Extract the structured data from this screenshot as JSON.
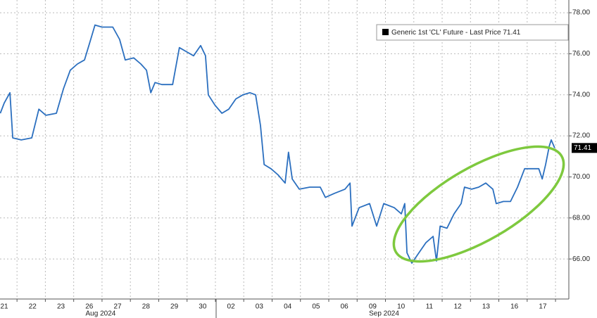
{
  "chart_data": {
    "type": "line",
    "legend_label": "Generic 1st 'CL' Future - Last Price",
    "last_price": 71.41,
    "x_group_labels": [
      "Aug 2024",
      "Sep 2024"
    ],
    "xlim": [
      -0.15,
      19.92
    ],
    "ylim": [
      64.05,
      78.62
    ],
    "xticks": [
      {
        "value": 0,
        "label": "21"
      },
      {
        "value": 1,
        "label": "22"
      },
      {
        "value": 2,
        "label": "23"
      },
      {
        "value": 3,
        "label": "26"
      },
      {
        "value": 4,
        "label": "27"
      },
      {
        "value": 5,
        "label": "28"
      },
      {
        "value": 6,
        "label": "29"
      },
      {
        "value": 7,
        "label": "30"
      },
      {
        "value": 8,
        "label": "02"
      },
      {
        "value": 9,
        "label": "03"
      },
      {
        "value": 10,
        "label": "04"
      },
      {
        "value": 11,
        "label": "05"
      },
      {
        "value": 12,
        "label": "06"
      },
      {
        "value": 13,
        "label": "09"
      },
      {
        "value": 14,
        "label": "10"
      },
      {
        "value": 15,
        "label": "11"
      },
      {
        "value": 16,
        "label": "12"
      },
      {
        "value": 17,
        "label": "13"
      },
      {
        "value": 18,
        "label": "16"
      },
      {
        "value": 19,
        "label": "17"
      }
    ],
    "yticks": [
      {
        "value": 66,
        "label": "66.00"
      },
      {
        "value": 68,
        "label": "68.00"
      },
      {
        "value": 70,
        "label": "70.00"
      },
      {
        "value": 72,
        "label": "72.00"
      },
      {
        "value": 74,
        "label": "74.00"
      },
      {
        "value": 76,
        "label": "76.00"
      },
      {
        "value": 78,
        "label": "78.00"
      }
    ],
    "grid": true,
    "x": [
      -0.14,
      0,
      0.2,
      0.3,
      0.6,
      0.97,
      1.22,
      1.47,
      1.84,
      2.09,
      2.33,
      2.58,
      2.83,
      3.03,
      3.2,
      3.45,
      3.83,
      4.07,
      4.27,
      4.57,
      4.82,
      5.02,
      5.17,
      5.32,
      5.56,
      5.94,
      6.06,
      6.18,
      6.43,
      6.68,
      6.93,
      7.1,
      7.2,
      7.43,
      7.68,
      7.92,
      8.17,
      8.42,
      8.67,
      8.87,
      9.04,
      9.17,
      9.41,
      9.66,
      9.91,
      10.03,
      10.16,
      10.41,
      10.78,
      11.15,
      11.33,
      11.65,
      12.02,
      12.2,
      12.27,
      12.52,
      12.89,
      13.14,
      13.39,
      13.76,
      14.01,
      14.13,
      14.21,
      14.38,
      14.63,
      14.88,
      15.13,
      15.25,
      15.38,
      15.62,
      15.87,
      16.12,
      16.24,
      16.49,
      16.74,
      16.99,
      17.24,
      17.36,
      17.61,
      17.86,
      18.11,
      18.36,
      18.61,
      18.86,
      18.98,
      19.1,
      19.23,
      19.3,
      19.42
    ],
    "series": [
      {
        "name": "Generic 1st 'CL' Future - Last Price",
        "color": "#2b6fbf",
        "values": [
          73.1,
          73.6,
          74.1,
          71.9,
          71.8,
          71.9,
          73.3,
          73.0,
          73.1,
          74.3,
          75.2,
          75.5,
          75.7,
          76.6,
          77.4,
          77.3,
          77.3,
          76.7,
          75.7,
          75.8,
          75.5,
          75.2,
          74.1,
          74.6,
          74.5,
          74.5,
          75.4,
          76.3,
          76.1,
          75.9,
          76.4,
          75.9,
          74.0,
          73.5,
          73.1,
          73.3,
          73.8,
          74.0,
          74.1,
          74.0,
          72.5,
          70.6,
          70.4,
          70.1,
          69.7,
          71.2,
          69.9,
          69.4,
          69.5,
          69.5,
          69.0,
          69.2,
          69.4,
          69.7,
          67.6,
          68.5,
          68.7,
          67.6,
          68.7,
          68.5,
          68.2,
          68.7,
          66.3,
          65.8,
          66.3,
          66.8,
          67.1,
          65.9,
          67.6,
          67.5,
          68.2,
          68.7,
          69.5,
          69.4,
          69.5,
          69.7,
          69.4,
          68.7,
          68.8,
          68.8,
          69.5,
          70.4,
          70.4,
          70.4,
          69.9,
          70.6,
          71.5,
          71.8,
          71.41
        ]
      }
    ]
  }
}
